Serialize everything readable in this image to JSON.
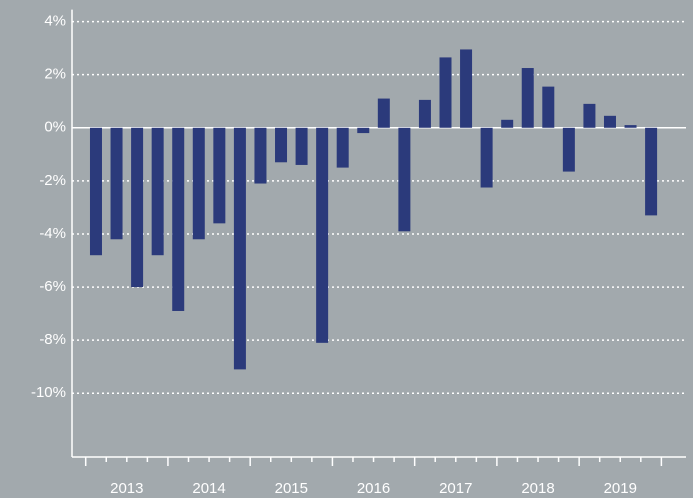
{
  "chart_data": {
    "type": "bar",
    "categories": [
      null,
      null,
      null,
      null,
      null,
      null,
      null,
      null,
      null,
      null,
      null,
      null,
      null,
      null,
      null,
      null,
      null,
      null,
      null,
      null,
      null,
      null,
      null,
      null,
      null,
      null,
      null,
      null
    ],
    "values": [
      -4.8,
      -4.2,
      -6.0,
      -4.8,
      -6.9,
      -4.2,
      -3.6,
      -9.1,
      -2.1,
      -1.3,
      -1.4,
      -8.1,
      -1.5,
      -0.2,
      1.1,
      -3.9,
      1.05,
      2.65,
      2.95,
      -2.25,
      0.3,
      2.25,
      1.55,
      -1.65,
      0.9,
      0.45,
      0.1,
      -3.3
    ],
    "year_labels": [
      "2013",
      "2014",
      "2015",
      "2016",
      "2017",
      "2018",
      "2019"
    ],
    "color": "#2b3a7b",
    "ylim": [
      -12.4,
      4.3
    ],
    "yticks": [
      {
        "value": -10,
        "label": "-10%"
      },
      {
        "value": -8,
        "label": "-8%"
      },
      {
        "value": -6,
        "label": "-6%"
      },
      {
        "value": -4,
        "label": "-4%"
      },
      {
        "value": -2,
        "label": "-2%"
      },
      {
        "value": 0,
        "label": "0%"
      },
      {
        "value": 2,
        "label": "2%"
      },
      {
        "value": 4,
        "label": "4%"
      }
    ],
    "grid": true
  }
}
